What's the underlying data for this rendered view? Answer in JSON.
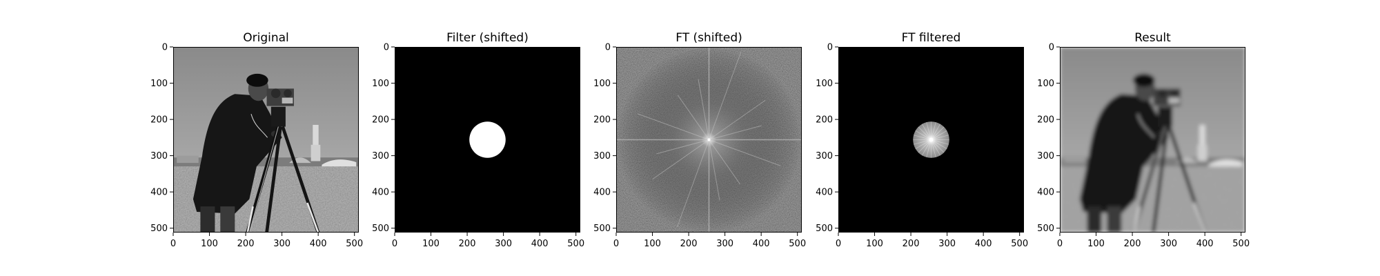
{
  "chart_data": [
    {
      "type": "heatmap",
      "title": "Original",
      "content": "photograph",
      "colormap": "gray",
      "xlim": [
        0,
        512
      ],
      "ylim": [
        512,
        0
      ],
      "xticks": [
        0,
        100,
        200,
        300,
        400,
        500
      ],
      "yticks": [
        0,
        100,
        200,
        300,
        400,
        500
      ]
    },
    {
      "type": "heatmap",
      "title": "Filter (shifted)",
      "content": "disk-mask",
      "colormap": "gray",
      "disk_center": [
        256,
        256
      ],
      "disk_radius": 50,
      "xlim": [
        0,
        512
      ],
      "ylim": [
        512,
        0
      ],
      "xticks": [
        0,
        100,
        200,
        300,
        400,
        500
      ],
      "yticks": [
        0,
        100,
        200,
        300,
        400,
        500
      ]
    },
    {
      "type": "heatmap",
      "title": "FT (shifted)",
      "content": "spectrum",
      "colormap": "gray",
      "center": [
        256,
        256
      ],
      "xlim": [
        0,
        512
      ],
      "ylim": [
        512,
        0
      ],
      "xticks": [
        0,
        100,
        200,
        300,
        400,
        500
      ],
      "yticks": [
        0,
        100,
        200,
        300,
        400,
        500
      ]
    },
    {
      "type": "heatmap",
      "title": "FT filtered",
      "content": "masked-spectrum",
      "colormap": "gray",
      "disk_center": [
        256,
        256
      ],
      "disk_radius": 50,
      "xlim": [
        0,
        512
      ],
      "ylim": [
        512,
        0
      ],
      "xticks": [
        0,
        100,
        200,
        300,
        400,
        500
      ],
      "yticks": [
        0,
        100,
        200,
        300,
        400,
        500
      ]
    },
    {
      "type": "heatmap",
      "title": "Result",
      "content": "photograph-blurred",
      "colormap": "gray",
      "xlim": [
        0,
        512
      ],
      "ylim": [
        512,
        0
      ],
      "xticks": [
        0,
        100,
        200,
        300,
        400,
        500
      ],
      "yticks": [
        0,
        100,
        200,
        300,
        400,
        500
      ]
    }
  ]
}
